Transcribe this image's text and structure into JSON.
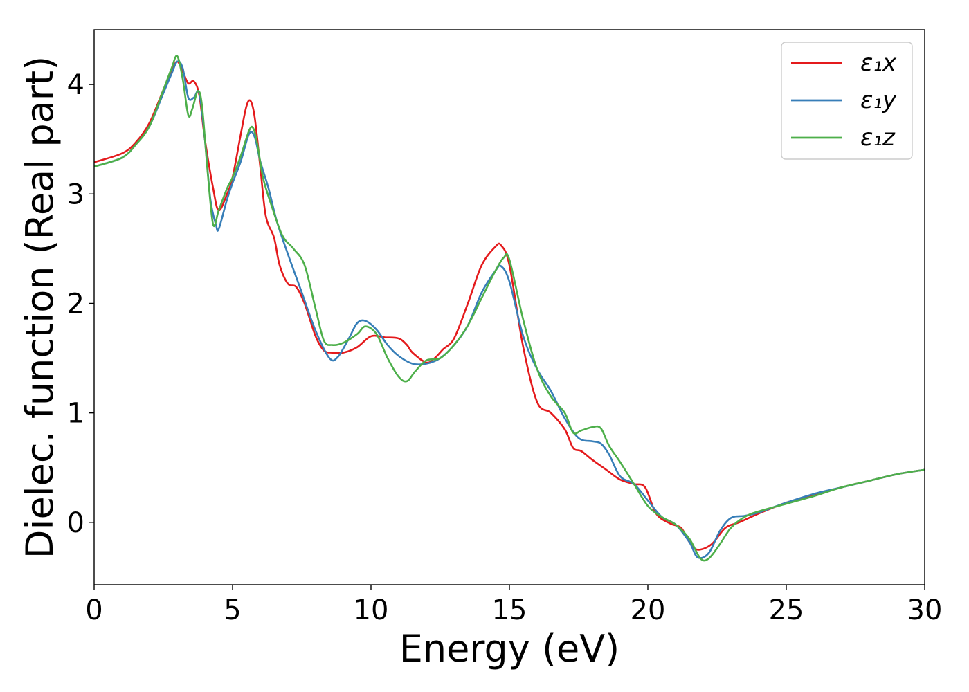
{
  "chart_data": {
    "type": "line",
    "xlabel": "Energy (eV)",
    "ylabel": "Dielec. function (Real part)",
    "xlim": [
      0,
      30
    ],
    "ylim": [
      -0.57,
      4.5
    ],
    "xticks": [
      0,
      5,
      10,
      15,
      20,
      25,
      30
    ],
    "xtick_labels": [
      "0",
      "5",
      "10",
      "15",
      "20",
      "25",
      "30"
    ],
    "yticks": [
      0,
      1,
      2,
      3,
      4
    ],
    "ytick_labels": [
      "0",
      "1",
      "2",
      "3",
      "4"
    ],
    "grid": false,
    "legend_position": "top-right",
    "series": [
      {
        "name": "ε₁x",
        "color": "#e41a1c",
        "x": [
          0,
          1,
          1.5,
          2,
          2.5,
          2.8,
          3.0,
          3.2,
          3.4,
          3.6,
          3.8,
          4.0,
          4.3,
          4.5,
          4.8,
          5.0,
          5.3,
          5.5,
          5.65,
          5.8,
          6.0,
          6.2,
          6.5,
          6.7,
          7.0,
          7.3,
          7.6,
          8.0,
          8.3,
          8.6,
          9.0,
          9.5,
          10.0,
          10.5,
          11.0,
          11.3,
          11.5,
          12.0,
          12.3,
          12.6,
          13.0,
          13.5,
          14.0,
          14.5,
          14.7,
          15.0,
          15.5,
          16.0,
          16.5,
          17.0,
          17.3,
          17.6,
          18.0,
          18.5,
          19.0,
          19.5,
          19.9,
          20.3,
          20.8,
          21.2,
          21.5,
          21.8,
          22.3,
          22.8,
          23.3,
          24.0,
          25.0,
          26.0,
          27.0,
          28.0,
          29.0,
          30.0
        ],
        "values": [
          3.29,
          3.37,
          3.47,
          3.65,
          3.95,
          4.12,
          4.21,
          4.12,
          4.01,
          4.03,
          3.9,
          3.5,
          3.05,
          2.85,
          3.0,
          3.15,
          3.55,
          3.8,
          3.85,
          3.7,
          3.25,
          2.8,
          2.6,
          2.35,
          2.18,
          2.15,
          2.0,
          1.7,
          1.57,
          1.55,
          1.55,
          1.6,
          1.7,
          1.69,
          1.68,
          1.62,
          1.55,
          1.46,
          1.5,
          1.58,
          1.68,
          2.0,
          2.35,
          2.52,
          2.53,
          2.35,
          1.6,
          1.1,
          1.0,
          0.85,
          0.68,
          0.65,
          0.57,
          0.48,
          0.39,
          0.35,
          0.32,
          0.08,
          -0.01,
          -0.05,
          -0.18,
          -0.25,
          -0.2,
          -0.05,
          0.0,
          0.08,
          0.18,
          0.25,
          0.32,
          0.38,
          0.44,
          0.48
        ]
      },
      {
        "name": "ε₁y",
        "color": "#377eb8",
        "x": [
          0,
          1,
          1.5,
          2,
          2.5,
          2.8,
          3.0,
          3.2,
          3.4,
          3.6,
          3.8,
          4.0,
          4.2,
          4.4,
          4.5,
          4.8,
          5.0,
          5.3,
          5.6,
          5.8,
          6.0,
          6.3,
          6.6,
          7.0,
          7.5,
          8.0,
          8.5,
          8.8,
          9.2,
          9.5,
          9.8,
          10.2,
          10.6,
          11.0,
          11.5,
          12.0,
          12.5,
          13.0,
          13.5,
          14.0,
          14.5,
          14.7,
          15.0,
          15.5,
          16.0,
          16.5,
          17.0,
          17.5,
          18.0,
          18.3,
          18.6,
          19.0,
          19.5,
          20.0,
          20.5,
          21.0,
          21.5,
          21.8,
          22.2,
          22.6,
          23.0,
          23.5,
          24.0,
          25.0,
          26.0,
          27.0,
          28.0,
          29.0,
          30.0
        ],
        "values": [
          3.25,
          3.33,
          3.45,
          3.62,
          3.92,
          4.1,
          4.21,
          4.15,
          3.88,
          3.88,
          3.92,
          3.5,
          2.95,
          2.72,
          2.68,
          2.95,
          3.1,
          3.3,
          3.55,
          3.52,
          3.3,
          3.05,
          2.75,
          2.45,
          2.1,
          1.75,
          1.5,
          1.51,
          1.68,
          1.82,
          1.84,
          1.76,
          1.62,
          1.52,
          1.45,
          1.45,
          1.5,
          1.62,
          1.8,
          2.1,
          2.3,
          2.34,
          2.2,
          1.7,
          1.4,
          1.2,
          0.95,
          0.77,
          0.74,
          0.72,
          0.62,
          0.42,
          0.35,
          0.2,
          0.05,
          -0.02,
          -0.18,
          -0.32,
          -0.28,
          -0.08,
          0.04,
          0.06,
          0.09,
          0.18,
          0.26,
          0.32,
          0.38,
          0.44,
          0.48
        ]
      },
      {
        "name": "ε₁z",
        "color": "#4daf4a",
        "x": [
          0,
          1,
          1.5,
          2,
          2.5,
          2.8,
          3.0,
          3.2,
          3.4,
          3.55,
          3.75,
          3.9,
          4.1,
          4.3,
          4.5,
          4.8,
          5.0,
          5.3,
          5.6,
          5.75,
          5.9,
          6.1,
          6.4,
          6.8,
          7.2,
          7.6,
          8.0,
          8.3,
          8.6,
          9.0,
          9.5,
          9.8,
          10.2,
          10.6,
          11.0,
          11.3,
          11.6,
          12.0,
          12.5,
          13.0,
          13.5,
          14.0,
          14.5,
          14.8,
          15.0,
          15.5,
          16.0,
          16.5,
          17.0,
          17.3,
          17.6,
          18.0,
          18.3,
          18.6,
          19.0,
          19.5,
          20.0,
          20.5,
          21.0,
          21.5,
          21.9,
          22.2,
          22.6,
          23.0,
          23.5,
          24.0,
          25.0,
          26.0,
          27.0,
          28.0,
          29.0,
          30.0
        ],
        "values": [
          3.25,
          3.33,
          3.45,
          3.62,
          3.95,
          4.15,
          4.26,
          4.05,
          3.72,
          3.78,
          3.94,
          3.8,
          3.2,
          2.72,
          2.85,
          3.05,
          3.15,
          3.35,
          3.58,
          3.6,
          3.45,
          3.15,
          2.9,
          2.62,
          2.5,
          2.35,
          1.95,
          1.66,
          1.62,
          1.64,
          1.72,
          1.79,
          1.72,
          1.5,
          1.33,
          1.29,
          1.38,
          1.48,
          1.5,
          1.62,
          1.8,
          2.05,
          2.3,
          2.42,
          2.4,
          1.85,
          1.4,
          1.15,
          1.0,
          0.82,
          0.84,
          0.87,
          0.86,
          0.7,
          0.55,
          0.35,
          0.15,
          0.05,
          -0.02,
          -0.15,
          -0.33,
          -0.33,
          -0.2,
          -0.05,
          0.05,
          0.1,
          0.17,
          0.24,
          0.32,
          0.38,
          0.44,
          0.48
        ]
      }
    ]
  }
}
